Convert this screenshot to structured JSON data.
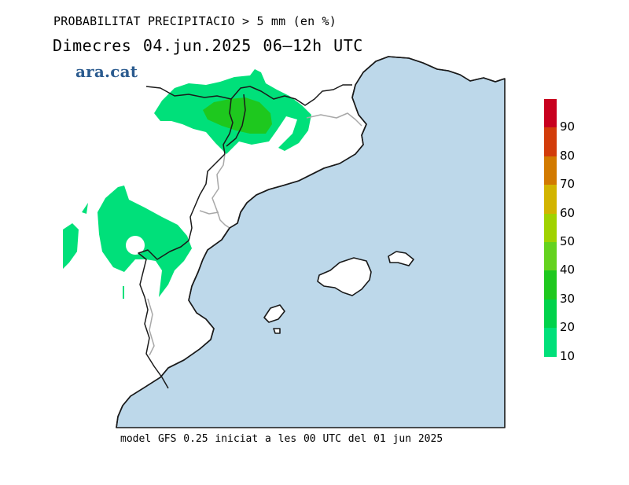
{
  "header": {
    "title": "PROBABILITAT PRECIPITACIO > 5 mm (en %)",
    "subtitle": "Dimecres  04.jun.2025 06–12h UTC"
  },
  "logo": {
    "text": "ara.cat"
  },
  "footer": {
    "text": "model GFS 0.25 iniciat a les 00 UTC del 01 jun 2025"
  },
  "map": {
    "sea_color": "#bdd8ea",
    "land_color": "#ffffff",
    "coast_color": "#1a1a1a",
    "border_color": "#a8a8a8"
  },
  "legend": {
    "items": [
      {
        "label": "90",
        "color": "#c8001e"
      },
      {
        "label": "80",
        "color": "#d23c0a"
      },
      {
        "label": "70",
        "color": "#d27a00"
      },
      {
        "label": "60",
        "color": "#d2b400"
      },
      {
        "label": "50",
        "color": "#a0d200"
      },
      {
        "label": "40",
        "color": "#64d21e"
      },
      {
        "label": "30",
        "color": "#1ec81e"
      },
      {
        "label": "20",
        "color": "#00d24b"
      },
      {
        "label": "10",
        "color": "#00e07a"
      }
    ]
  }
}
